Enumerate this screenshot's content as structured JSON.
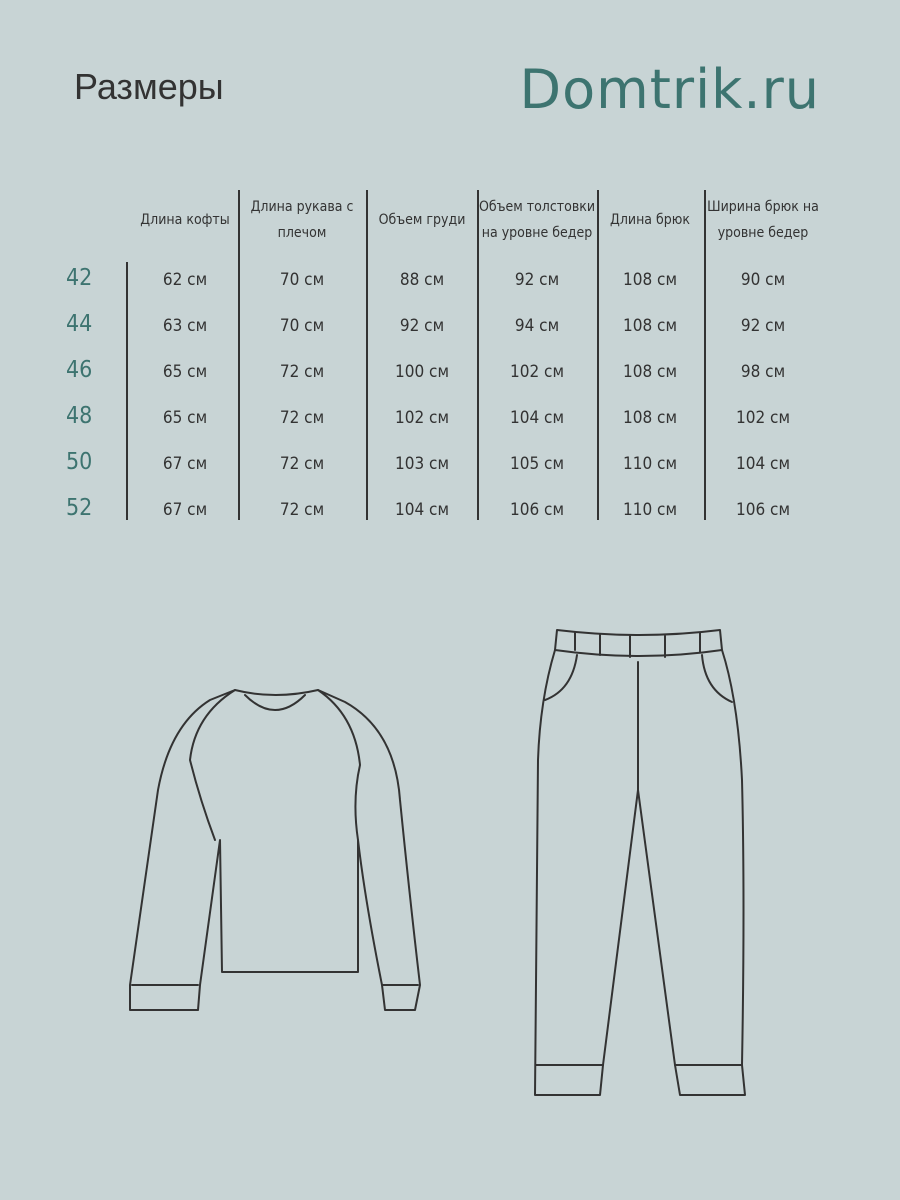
{
  "title": "Размеры",
  "brand": "Domtrik.ru",
  "colors": {
    "background": "#c8d4d5",
    "accent": "#3d7470",
    "text": "#333333"
  },
  "table": {
    "headers": [
      "Длина кофты",
      "Длина рукава с плечом",
      "Объем груди",
      "Объем толстовки на уровне бедер",
      "Длина брюк",
      "Ширина брюк на уровне бедер"
    ],
    "rows": [
      {
        "size": "42",
        "values": [
          "62 см",
          "70 см",
          "88 см",
          "92 см",
          "108 см",
          "90 см"
        ]
      },
      {
        "size": "44",
        "values": [
          "63 см",
          "70 см",
          "92 см",
          "94 см",
          "108 см",
          "92 см"
        ]
      },
      {
        "size": "46",
        "values": [
          "65 см",
          "72 см",
          "100 см",
          "102 см",
          "108 см",
          "98 см"
        ]
      },
      {
        "size": "48",
        "values": [
          "65 см",
          "72 см",
          "102 см",
          "104 см",
          "108 см",
          "102 см"
        ]
      },
      {
        "size": "50",
        "values": [
          "67 см",
          "72 см",
          "103 см",
          "105 см",
          "110 см",
          "104 см"
        ]
      },
      {
        "size": "52",
        "values": [
          "67 см",
          "72 см",
          "104 см",
          "106 см",
          "110 см",
          "106 см"
        ]
      }
    ]
  },
  "illustrations": [
    "sweatshirt-icon",
    "pants-icon"
  ]
}
